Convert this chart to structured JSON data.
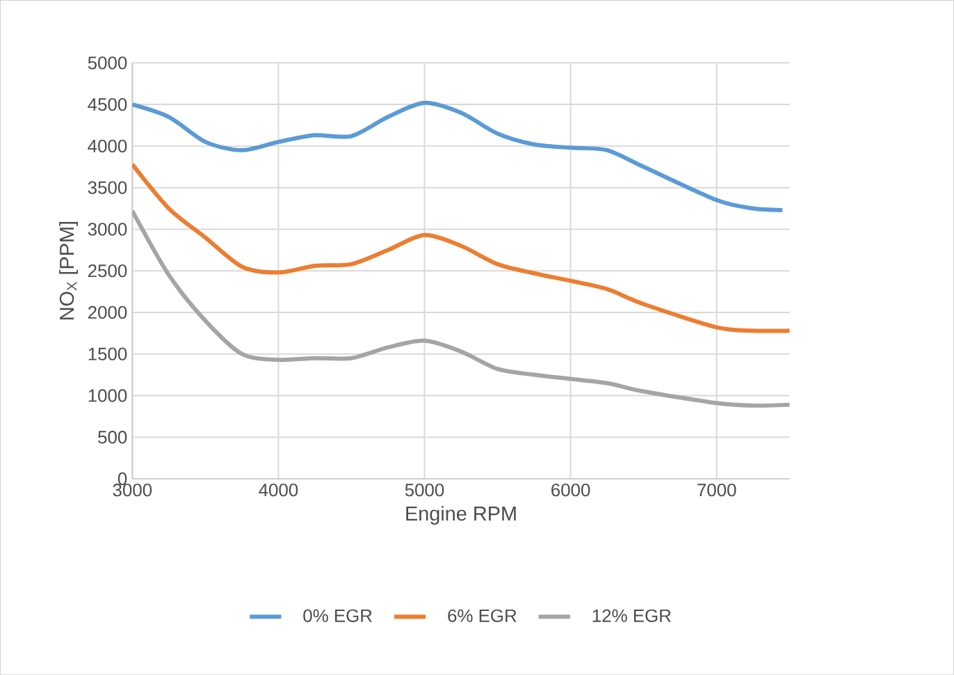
{
  "chart_data": {
    "type": "line",
    "xlabel": "Engine RPM",
    "ylabel": "NO$_{X}$ [PPM]",
    "xlim": [
      3000,
      7500
    ],
    "xticks": [
      3000,
      4000,
      5000,
      6000,
      7000
    ],
    "ylim": [
      0,
      5000
    ],
    "yticks": [
      0,
      500,
      1000,
      1500,
      2000,
      2500,
      3000,
      3500,
      4000,
      4500,
      5000
    ],
    "grid": true,
    "legend": "bottom",
    "marker": "none",
    "line_style": "solid",
    "series": [
      {
        "name": "0% EGR",
        "color": "#5b9bd5",
        "x": [
          3000,
          3250,
          3500,
          3750,
          4000,
          4250,
          4500,
          4750,
          5000,
          5250,
          5500,
          5750,
          6000,
          6250,
          6500,
          7000,
          7250,
          7450
        ],
        "values": [
          4500,
          4350,
          4050,
          3950,
          4050,
          4130,
          4120,
          4350,
          4520,
          4400,
          4150,
          4020,
          3980,
          3950,
          3750,
          3350,
          3250,
          3230
        ]
      },
      {
        "name": "6% EGR",
        "color": "#ed7d31",
        "x": [
          3000,
          3250,
          3500,
          3750,
          4000,
          4250,
          4500,
          4750,
          5000,
          5250,
          5500,
          5750,
          6000,
          6250,
          6500,
          7000,
          7250,
          7500
        ],
        "values": [
          3780,
          3250,
          2900,
          2550,
          2480,
          2560,
          2580,
          2750,
          2930,
          2800,
          2580,
          2470,
          2380,
          2280,
          2100,
          1820,
          1780,
          1780
        ]
      },
      {
        "name": "12% EGR",
        "color": "#a5a5a5",
        "x": [
          3000,
          3250,
          3500,
          3750,
          4000,
          4250,
          4500,
          4750,
          5000,
          5250,
          5500,
          5750,
          6000,
          6250,
          6500,
          7000,
          7250,
          7500
        ],
        "values": [
          3220,
          2450,
          1900,
          1500,
          1430,
          1450,
          1450,
          1580,
          1660,
          1530,
          1320,
          1250,
          1200,
          1150,
          1050,
          910,
          880,
          890
        ]
      }
    ]
  }
}
